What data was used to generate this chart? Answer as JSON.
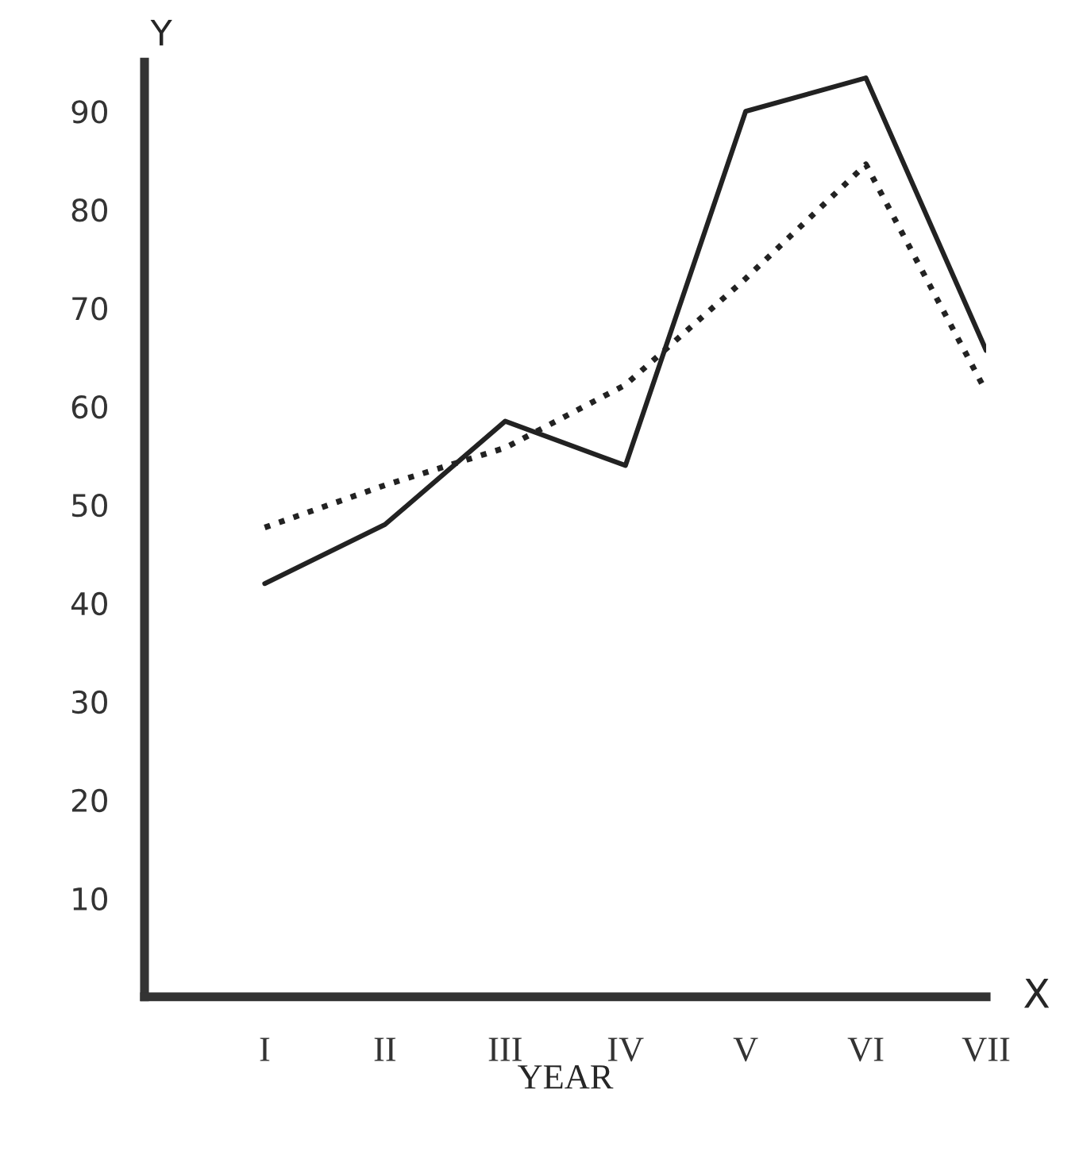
{
  "chart_data": {
    "type": "line",
    "xlabel": "YEAR",
    "ylabel": "Y",
    "annotations": [
      "X"
    ],
    "categories": [
      "I",
      "II",
      "III",
      "IV",
      "V",
      "VI",
      "VII"
    ],
    "series": [
      {
        "color": "#222222",
        "line_style": "solid",
        "values": [
          42,
          48,
          58.5,
          54,
          90,
          93.4,
          65.7
        ]
      },
      {
        "color": "#222222",
        "line_style": "dotted",
        "values": [
          47.7,
          52,
          55.8,
          62.2,
          73,
          84.6,
          61.5
        ]
      }
    ],
    "ylim": [
      0,
      95
    ],
    "yticks": [
      10,
      20,
      30,
      40,
      50,
      60,
      70,
      80,
      90
    ],
    "grid": false,
    "legend": false,
    "marker": "none"
  }
}
